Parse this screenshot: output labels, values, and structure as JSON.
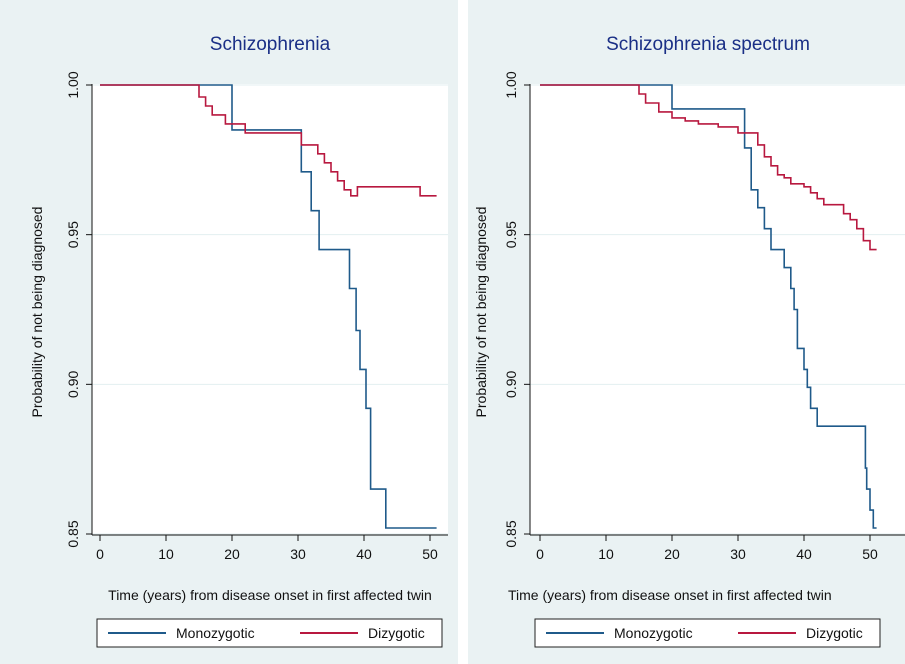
{
  "chart_data": [
    {
      "type": "line",
      "title": "Schizophrenia",
      "xlabel": "Time (years) from disease onset in first affected twin",
      "ylabel": "Probability of not being diagnosed",
      "xlim": [
        0,
        52
      ],
      "ylim": [
        0.85,
        1.0
      ],
      "x_ticks": [
        "0",
        "10",
        "20",
        "30",
        "40",
        "50"
      ],
      "y_ticks": [
        "0.85",
        "0.90",
        "0.95",
        "1.00"
      ],
      "grid": true,
      "legend_position": "bottom",
      "series": [
        {
          "name": "Monozygotic",
          "color": "#1f5a8a",
          "x": [
            0,
            20,
            20,
            30.5,
            30.5,
            32,
            32,
            33.2,
            33.2,
            37.8,
            37.8,
            38.8,
            38.8,
            39.4,
            39.4,
            40.3,
            40.3,
            41,
            41,
            43.3,
            43.3,
            51
          ],
          "y": [
            1.0,
            1.0,
            0.985,
            0.985,
            0.971,
            0.971,
            0.958,
            0.958,
            0.945,
            0.945,
            0.932,
            0.932,
            0.918,
            0.918,
            0.905,
            0.905,
            0.892,
            0.892,
            0.865,
            0.865,
            0.852,
            0.852
          ]
        },
        {
          "name": "Dizygotic",
          "color": "#b8183f",
          "x": [
            0,
            15,
            15,
            16,
            16,
            17,
            17,
            19,
            19,
            22,
            22,
            30.5,
            30.5,
            33,
            33,
            34,
            34,
            35,
            35,
            36,
            36,
            37,
            37,
            38,
            38,
            39,
            39,
            48.5,
            48.5,
            51
          ],
          "y": [
            1.0,
            1.0,
            0.996,
            0.996,
            0.993,
            0.993,
            0.99,
            0.99,
            0.987,
            0.987,
            0.984,
            0.984,
            0.98,
            0.98,
            0.977,
            0.977,
            0.974,
            0.974,
            0.971,
            0.971,
            0.968,
            0.968,
            0.965,
            0.965,
            0.963,
            0.963,
            0.966,
            0.966,
            0.963,
            0.963
          ]
        }
      ]
    },
    {
      "type": "line",
      "title": "Schizophrenia spectrum",
      "xlabel": "Time (years) from disease onset in first affected twin",
      "ylabel": "Probability of not being diagnosed",
      "xlim": [
        0,
        52
      ],
      "ylim": [
        0.85,
        1.0
      ],
      "x_ticks": [
        "0",
        "10",
        "20",
        "30",
        "40",
        "50"
      ],
      "y_ticks": [
        "0.85",
        "0.90",
        "0.95",
        "1.00"
      ],
      "grid": true,
      "legend_position": "bottom",
      "series": [
        {
          "name": "Monozygotic",
          "color": "#1f5a8a",
          "x": [
            0,
            20,
            20,
            31,
            31,
            32,
            32,
            33,
            33,
            34,
            34,
            35,
            35,
            37,
            37,
            38,
            38,
            38.5,
            38.5,
            39,
            39,
            40,
            40,
            40.5,
            40.5,
            41,
            41,
            42,
            42,
            49.3,
            49.3,
            49.5,
            49.5,
            50,
            50,
            50.5,
            50.5,
            51
          ],
          "y": [
            1.0,
            1.0,
            0.992,
            0.992,
            0.979,
            0.979,
            0.965,
            0.965,
            0.959,
            0.959,
            0.952,
            0.952,
            0.945,
            0.945,
            0.939,
            0.939,
            0.932,
            0.932,
            0.925,
            0.925,
            0.912,
            0.912,
            0.905,
            0.905,
            0.899,
            0.899,
            0.892,
            0.892,
            0.886,
            0.886,
            0.872,
            0.872,
            0.865,
            0.865,
            0.858,
            0.858,
            0.852,
            0.852
          ]
        },
        {
          "name": "Dizygotic",
          "color": "#b8183f",
          "x": [
            0,
            15,
            15,
            16,
            16,
            18,
            18,
            20,
            20,
            22,
            22,
            24,
            24,
            27,
            27,
            30,
            30,
            33,
            33,
            34,
            34,
            35,
            35,
            36,
            36,
            37,
            37,
            38,
            38,
            40,
            40,
            41,
            41,
            42,
            42,
            43,
            43,
            46,
            46,
            47,
            47,
            48,
            48,
            49,
            49,
            50,
            50,
            51
          ],
          "y": [
            1.0,
            1.0,
            0.997,
            0.997,
            0.994,
            0.994,
            0.991,
            0.991,
            0.989,
            0.989,
            0.988,
            0.988,
            0.987,
            0.987,
            0.986,
            0.986,
            0.984,
            0.984,
            0.98,
            0.98,
            0.976,
            0.976,
            0.973,
            0.973,
            0.97,
            0.97,
            0.969,
            0.969,
            0.967,
            0.967,
            0.966,
            0.966,
            0.964,
            0.964,
            0.962,
            0.962,
            0.96,
            0.96,
            0.957,
            0.957,
            0.955,
            0.955,
            0.952,
            0.952,
            0.948,
            0.948,
            0.945,
            0.945
          ]
        }
      ]
    }
  ]
}
